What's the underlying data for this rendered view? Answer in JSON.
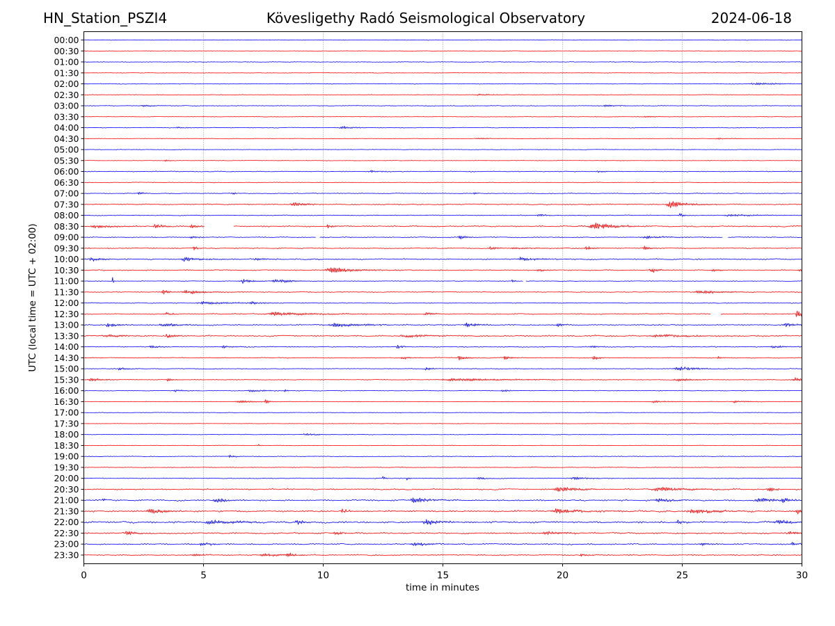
{
  "header": {
    "station": "HN_Station_PSZI4",
    "observatory": "Kövesligethy Radó Seismological Observatory",
    "date": "2024-06-18"
  },
  "chart_data": {
    "type": "line",
    "subtype": "helicorder",
    "title": "Kövesligethy Radó Seismological Observatory",
    "xlabel": "time in minutes",
    "ylabel": "UTC (local time = UTC + 02:00)",
    "xlim": [
      0,
      30
    ],
    "x_ticks": [
      "0",
      "5",
      "10",
      "15",
      "20",
      "25",
      "30"
    ],
    "x_tick_values": [
      0,
      5,
      10,
      15,
      20,
      25,
      30
    ],
    "grid": "vertical dotted at x ticks",
    "colors": {
      "even_row": "#0000ff",
      "odd_row": "#ff0000",
      "grid": "#808080"
    },
    "rows": [
      {
        "label": "00:00",
        "noise": 0.4,
        "events": []
      },
      {
        "label": "00:30",
        "noise": 0.4,
        "events": []
      },
      {
        "label": "01:00",
        "noise": 0.5,
        "events": []
      },
      {
        "label": "01:30",
        "noise": 0.4,
        "events": []
      },
      {
        "label": "02:00",
        "noise": 0.5,
        "events": [
          {
            "t": 28.0,
            "dur": 1.5,
            "amp": 1.5
          }
        ]
      },
      {
        "label": "02:30",
        "noise": 0.4,
        "events": [
          {
            "t": 16.5,
            "dur": 0.6,
            "amp": 1.5
          }
        ]
      },
      {
        "label": "03:00",
        "noise": 0.5,
        "events": [
          {
            "t": 2.5,
            "dur": 0.5,
            "amp": 1.5
          },
          {
            "t": 21.8,
            "dur": 0.6,
            "amp": 1.5
          }
        ]
      },
      {
        "label": "03:30",
        "noise": 0.4,
        "events": [
          {
            "t": 23.5,
            "dur": 0.8,
            "amp": 1.0
          }
        ]
      },
      {
        "label": "04:00",
        "noise": 0.5,
        "events": [
          {
            "t": 10.8,
            "dur": 0.6,
            "amp": 2.2
          },
          {
            "t": 3.9,
            "dur": 0.3,
            "amp": 1.2
          }
        ]
      },
      {
        "label": "04:30",
        "noise": 0.4,
        "events": [
          {
            "t": 16.5,
            "dur": 0.8,
            "amp": 1.0
          },
          {
            "t": 26.5,
            "dur": 0.6,
            "amp": 1.0
          }
        ]
      },
      {
        "label": "05:00",
        "noise": 0.4,
        "events": []
      },
      {
        "label": "05:30",
        "noise": 0.4,
        "events": [
          {
            "t": 3.4,
            "dur": 0.2,
            "amp": 1.5
          }
        ]
      },
      {
        "label": "06:00",
        "noise": 0.7,
        "events": [
          {
            "t": 12.0,
            "dur": 0.5,
            "amp": 1.5
          },
          {
            "t": 21.5,
            "dur": 0.3,
            "amp": 1.5
          }
        ]
      },
      {
        "label": "06:30",
        "noise": 0.5,
        "events": []
      },
      {
        "label": "07:00",
        "noise": 0.6,
        "events": [
          {
            "t": 2.3,
            "dur": 0.15,
            "amp": 4.0
          },
          {
            "t": 6.2,
            "dur": 0.1,
            "amp": 3.0
          },
          {
            "t": 16.3,
            "dur": 0.1,
            "amp": 2.5
          }
        ]
      },
      {
        "label": "07:30",
        "noise": 0.8,
        "events": [
          {
            "t": 8.7,
            "dur": 0.5,
            "amp": 4.5
          },
          {
            "t": 24.5,
            "dur": 0.8,
            "amp": 5.5
          }
        ]
      },
      {
        "label": "08:00",
        "noise": 0.6,
        "events": [
          {
            "t": 19.0,
            "dur": 0.3,
            "amp": 2.0
          },
          {
            "t": 24.9,
            "dur": 0.2,
            "amp": 3.0
          },
          {
            "t": 27.0,
            "dur": 1.5,
            "amp": 1.5
          }
        ]
      },
      {
        "label": "08:30",
        "noise": 1.0,
        "events": [
          {
            "t": 0.5,
            "dur": 1.0,
            "amp": 2.5
          },
          {
            "t": 3.0,
            "dur": 0.5,
            "amp": 2.5
          },
          {
            "t": 4.5,
            "dur": 0.4,
            "amp": 3.0
          },
          {
            "t": 10.2,
            "dur": 0.3,
            "amp": 2.5
          },
          {
            "t": 21.3,
            "dur": 1.0,
            "amp": 5.5
          }
        ],
        "gaps": [
          [
            5.05,
            6.25
          ]
        ]
      },
      {
        "label": "09:00",
        "noise": 0.7,
        "events": [
          {
            "t": 4.5,
            "dur": 0.3,
            "amp": 2.5
          },
          {
            "t": 15.7,
            "dur": 0.3,
            "amp": 3.0
          },
          {
            "t": 23.5,
            "dur": 1.0,
            "amp": 2.0
          }
        ],
        "gaps": [
          [
            9.7,
            9.85
          ],
          [
            26.7,
            26.9
          ]
        ]
      },
      {
        "label": "09:30",
        "noise": 0.7,
        "events": [
          {
            "t": 4.6,
            "dur": 0.2,
            "amp": 2.5
          },
          {
            "t": 17.0,
            "dur": 0.3,
            "amp": 2.5
          },
          {
            "t": 18.0,
            "dur": 1.0,
            "amp": 1.5
          },
          {
            "t": 21.0,
            "dur": 0.3,
            "amp": 3.0
          },
          {
            "t": 23.4,
            "dur": 0.3,
            "amp": 3.0
          }
        ]
      },
      {
        "label": "10:00",
        "noise": 0.9,
        "events": [
          {
            "t": 0.3,
            "dur": 0.6,
            "amp": 2.5
          },
          {
            "t": 4.2,
            "dur": 0.8,
            "amp": 3.5
          },
          {
            "t": 7.2,
            "dur": 0.5,
            "amp": 2.0
          },
          {
            "t": 18.3,
            "dur": 0.8,
            "amp": 3.0
          }
        ]
      },
      {
        "label": "10:30",
        "noise": 0.8,
        "events": [
          {
            "t": 10.3,
            "dur": 1.2,
            "amp": 4.5
          },
          {
            "t": 19.0,
            "dur": 0.3,
            "amp": 2.5
          },
          {
            "t": 23.7,
            "dur": 0.3,
            "amp": 4.0
          },
          {
            "t": 26.3,
            "dur": 0.3,
            "amp": 3.0
          },
          {
            "t": 29.9,
            "dur": 0.2,
            "amp": 2.0
          }
        ]
      },
      {
        "label": "11:00",
        "noise": 0.5,
        "events": [
          {
            "t": 1.2,
            "dur": 0.05,
            "amp": 6.0
          },
          {
            "t": 6.6,
            "dur": 0.5,
            "amp": 3.5
          },
          {
            "t": 8.0,
            "dur": 0.8,
            "amp": 3.0
          },
          {
            "t": 17.9,
            "dur": 0.1,
            "amp": 3.0
          }
        ],
        "gaps": [
          [
            18.35,
            18.45
          ]
        ]
      },
      {
        "label": "11:30",
        "noise": 0.7,
        "events": [
          {
            "t": 3.3,
            "dur": 0.3,
            "amp": 3.5
          },
          {
            "t": 4.3,
            "dur": 1.0,
            "amp": 3.0
          },
          {
            "t": 25.7,
            "dur": 1.2,
            "amp": 2.5
          }
        ]
      },
      {
        "label": "12:00",
        "noise": 0.6,
        "events": [
          {
            "t": 5.0,
            "dur": 1.5,
            "amp": 2.0
          },
          {
            "t": 7.0,
            "dur": 0.6,
            "amp": 2.5
          }
        ]
      },
      {
        "label": "12:30",
        "noise": 0.8,
        "events": [
          {
            "t": 3.4,
            "dur": 0.3,
            "amp": 2.5
          },
          {
            "t": 8.0,
            "dur": 2.0,
            "amp": 2.5
          },
          {
            "t": 14.3,
            "dur": 0.4,
            "amp": 2.0
          },
          {
            "t": 29.8,
            "dur": 0.3,
            "amp": 5.0
          }
        ],
        "gaps": [
          [
            26.2,
            26.6
          ]
        ]
      },
      {
        "label": "13:00",
        "noise": 0.9,
        "events": [
          {
            "t": 1.0,
            "dur": 0.5,
            "amp": 3.0
          },
          {
            "t": 3.3,
            "dur": 0.8,
            "amp": 2.5
          },
          {
            "t": 10.5,
            "dur": 1.5,
            "amp": 3.0
          },
          {
            "t": 16.0,
            "dur": 0.5,
            "amp": 3.5
          },
          {
            "t": 19.8,
            "dur": 0.2,
            "amp": 4.0
          },
          {
            "t": 29.3,
            "dur": 0.5,
            "amp": 3.0
          }
        ]
      },
      {
        "label": "13:30",
        "noise": 1.0,
        "events": [
          {
            "t": 1.0,
            "dur": 1.0,
            "amp": 2.0
          },
          {
            "t": 3.5,
            "dur": 0.4,
            "amp": 3.0
          },
          {
            "t": 13.5,
            "dur": 1.5,
            "amp": 2.0
          },
          {
            "t": 24.0,
            "dur": 2.0,
            "amp": 2.0
          }
        ]
      },
      {
        "label": "14:00",
        "noise": 0.7,
        "events": [
          {
            "t": 2.8,
            "dur": 0.3,
            "amp": 2.5
          },
          {
            "t": 5.8,
            "dur": 0.5,
            "amp": 2.0
          },
          {
            "t": 13.1,
            "dur": 0.2,
            "amp": 3.5
          },
          {
            "t": 21.2,
            "dur": 0.3,
            "amp": 2.0
          },
          {
            "t": 28.8,
            "dur": 0.5,
            "amp": 2.5
          }
        ]
      },
      {
        "label": "14:30",
        "noise": 0.6,
        "events": [
          {
            "t": 13.3,
            "dur": 0.3,
            "amp": 3.0
          },
          {
            "t": 15.7,
            "dur": 0.4,
            "amp": 3.5
          },
          {
            "t": 17.6,
            "dur": 0.3,
            "amp": 3.0
          },
          {
            "t": 21.3,
            "dur": 0.2,
            "amp": 4.5
          },
          {
            "t": 26.5,
            "dur": 0.3,
            "amp": 2.0
          }
        ]
      },
      {
        "label": "15:00",
        "noise": 0.6,
        "events": [
          {
            "t": 1.5,
            "dur": 0.4,
            "amp": 2.0
          },
          {
            "t": 14.3,
            "dur": 0.2,
            "amp": 2.5
          },
          {
            "t": 24.8,
            "dur": 1.0,
            "amp": 3.0
          }
        ]
      },
      {
        "label": "15:30",
        "noise": 0.6,
        "events": [
          {
            "t": 0.3,
            "dur": 0.5,
            "amp": 3.0
          },
          {
            "t": 3.5,
            "dur": 0.3,
            "amp": 2.0
          },
          {
            "t": 15.5,
            "dur": 3.0,
            "amp": 2.0
          },
          {
            "t": 24.8,
            "dur": 0.8,
            "amp": 2.0
          },
          {
            "t": 29.7,
            "dur": 0.4,
            "amp": 3.0
          }
        ]
      },
      {
        "label": "16:00",
        "noise": 0.5,
        "events": [
          {
            "t": 3.8,
            "dur": 0.5,
            "amp": 1.8
          },
          {
            "t": 7.0,
            "dur": 0.8,
            "amp": 1.8
          },
          {
            "t": 8.4,
            "dur": 0.1,
            "amp": 2.0
          },
          {
            "t": 17.5,
            "dur": 0.3,
            "amp": 1.8
          }
        ]
      },
      {
        "label": "16:30",
        "noise": 0.4,
        "events": [
          {
            "t": 6.5,
            "dur": 1.0,
            "amp": 1.8
          },
          {
            "t": 7.6,
            "dur": 0.1,
            "amp": 4.0
          },
          {
            "t": 23.8,
            "dur": 0.8,
            "amp": 1.5
          },
          {
            "t": 27.2,
            "dur": 0.8,
            "amp": 1.5
          }
        ]
      },
      {
        "label": "17:00",
        "noise": 0.4,
        "events": []
      },
      {
        "label": "17:30",
        "noise": 0.4,
        "events": []
      },
      {
        "label": "18:00",
        "noise": 0.5,
        "events": [
          {
            "t": 9.3,
            "dur": 0.8,
            "amp": 1.5
          }
        ]
      },
      {
        "label": "18:30",
        "noise": 0.4,
        "events": [
          {
            "t": 7.3,
            "dur": 0.1,
            "amp": 1.5
          }
        ]
      },
      {
        "label": "19:00",
        "noise": 0.5,
        "events": [
          {
            "t": 6.1,
            "dur": 0.3,
            "amp": 2.0
          }
        ]
      },
      {
        "label": "19:30",
        "noise": 0.5,
        "events": []
      },
      {
        "label": "20:00",
        "noise": 0.6,
        "events": [
          {
            "t": 12.5,
            "dur": 0.1,
            "amp": 3.0
          },
          {
            "t": 13.5,
            "dur": 0.1,
            "amp": 3.5
          },
          {
            "t": 16.5,
            "dur": 0.4,
            "amp": 2.0
          },
          {
            "t": 20.5,
            "dur": 0.8,
            "amp": 2.0
          }
        ]
      },
      {
        "label": "20:30",
        "noise": 1.0,
        "events": [
          {
            "t": 19.8,
            "dur": 1.0,
            "amp": 3.5
          },
          {
            "t": 24.0,
            "dur": 1.5,
            "amp": 3.0
          },
          {
            "t": 28.6,
            "dur": 0.3,
            "amp": 4.0
          }
        ]
      },
      {
        "label": "21:00",
        "noise": 1.1,
        "events": [
          {
            "t": 0.8,
            "dur": 0.05,
            "amp": 3.0
          },
          {
            "t": 5.5,
            "dur": 0.5,
            "amp": 3.5
          },
          {
            "t": 13.8,
            "dur": 0.8,
            "amp": 4.5
          },
          {
            "t": 24.0,
            "dur": 0.8,
            "amp": 3.0
          },
          {
            "t": 28.2,
            "dur": 0.8,
            "amp": 3.5
          },
          {
            "t": 29.2,
            "dur": 0.3,
            "amp": 3.5
          }
        ]
      },
      {
        "label": "21:30",
        "noise": 1.3,
        "events": [
          {
            "t": 2.8,
            "dur": 0.8,
            "amp": 3.5
          },
          {
            "t": 10.8,
            "dur": 0.3,
            "amp": 3.0
          },
          {
            "t": 19.8,
            "dur": 1.5,
            "amp": 3.0
          },
          {
            "t": 25.5,
            "dur": 1.5,
            "amp": 3.0
          },
          {
            "t": 29.8,
            "dur": 0.3,
            "amp": 4.5
          }
        ]
      },
      {
        "label": "22:00",
        "noise": 1.4,
        "events": [
          {
            "t": 5.3,
            "dur": 1.5,
            "amp": 3.0
          },
          {
            "t": 8.9,
            "dur": 0.3,
            "amp": 4.0
          },
          {
            "t": 14.3,
            "dur": 0.8,
            "amp": 3.5
          },
          {
            "t": 24.8,
            "dur": 0.2,
            "amp": 5.0
          },
          {
            "t": 29.0,
            "dur": 1.0,
            "amp": 3.0
          }
        ]
      },
      {
        "label": "22:30",
        "noise": 1.2,
        "events": [
          {
            "t": 1.8,
            "dur": 0.5,
            "amp": 3.0
          },
          {
            "t": 10.5,
            "dur": 0.5,
            "amp": 2.5
          },
          {
            "t": 19.3,
            "dur": 1.0,
            "amp": 2.5
          },
          {
            "t": 29.5,
            "dur": 0.5,
            "amp": 2.5
          }
        ]
      },
      {
        "label": "23:00",
        "noise": 1.0,
        "events": [
          {
            "t": 4.9,
            "dur": 0.5,
            "amp": 2.5
          },
          {
            "t": 13.8,
            "dur": 0.8,
            "amp": 2.5
          },
          {
            "t": 25.8,
            "dur": 0.3,
            "amp": 3.5
          },
          {
            "t": 29.6,
            "dur": 0.3,
            "amp": 3.0
          }
        ]
      },
      {
        "label": "23:30",
        "noise": 0.9,
        "events": [
          {
            "t": 4.6,
            "dur": 0.3,
            "amp": 3.0
          },
          {
            "t": 8.5,
            "dur": 0.3,
            "amp": 4.0
          },
          {
            "t": 7.5,
            "dur": 1.0,
            "amp": 2.0
          },
          {
            "t": 20.8,
            "dur": 0.4,
            "amp": 2.0
          }
        ]
      }
    ]
  }
}
